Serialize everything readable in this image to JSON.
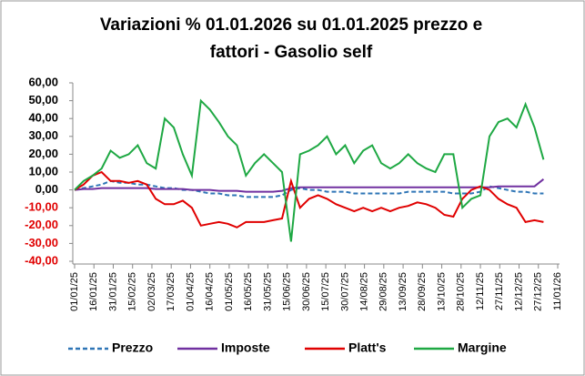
{
  "chart_data": {
    "type": "line",
    "title": [
      "Variazioni % 01.01.2026 su 01.01.2025 prezzo e",
      "fattori - Gasolio self"
    ],
    "x": [
      "2025-01-01",
      "2025-01-08",
      "2025-01-15",
      "2025-01-22",
      "2025-01-29",
      "2025-02-05",
      "2025-02-12",
      "2025-02-19",
      "2025-02-26",
      "2025-03-05",
      "2025-03-12",
      "2025-03-19",
      "2025-03-26",
      "2025-04-02",
      "2025-04-09",
      "2025-04-16",
      "2025-04-23",
      "2025-04-30",
      "2025-05-07",
      "2025-05-14",
      "2025-05-21",
      "2025-05-28",
      "2025-06-04",
      "2025-06-11",
      "2025-06-18",
      "2025-06-25",
      "2025-07-02",
      "2025-07-09",
      "2025-07-16",
      "2025-07-23",
      "2025-07-30",
      "2025-08-06",
      "2025-08-13",
      "2025-08-20",
      "2025-08-27",
      "2025-09-03",
      "2025-09-10",
      "2025-09-17",
      "2025-09-24",
      "2025-10-01",
      "2025-10-08",
      "2025-10-15",
      "2025-10-22",
      "2025-10-29",
      "2025-11-05",
      "2025-11-12",
      "2025-11-19",
      "2025-11-26",
      "2025-12-03",
      "2025-12-10",
      "2025-12-17",
      "2025-12-24",
      "2025-12-31"
    ],
    "series": [
      {
        "name": "Prezzo",
        "color": "#2e75b6",
        "dash": true,
        "values": [
          0,
          1,
          2,
          3,
          5,
          4,
          4,
          3,
          3,
          2,
          1,
          1,
          0,
          0,
          -1,
          -2,
          -2,
          -3,
          -3,
          -4,
          -4,
          -4,
          -4,
          -3,
          0,
          1,
          0,
          0,
          -1,
          -1,
          -1,
          -2,
          -2,
          -2,
          -2,
          -2,
          -2,
          -1,
          -1,
          -1,
          -1,
          -1,
          -2,
          -2,
          -2,
          -1,
          2,
          1,
          0,
          -1,
          -1,
          -2,
          -2
        ]
      },
      {
        "name": "Imposte",
        "color": "#7030a0",
        "values": [
          0,
          0.5,
          0.5,
          1,
          1,
          1,
          1,
          1,
          1,
          0.5,
          0.5,
          0.5,
          0.5,
          0,
          0,
          0,
          -0.5,
          -0.5,
          -0.5,
          -1,
          -1,
          -1,
          -1,
          -0.5,
          1,
          1.5,
          1.5,
          1.5,
          1.5,
          1.5,
          1.5,
          1.5,
          1.5,
          1.5,
          1.5,
          1.5,
          1.5,
          1.5,
          1.5,
          1.5,
          1.5,
          1.5,
          1.5,
          1.5,
          1.5,
          1.5,
          1.5,
          2,
          2,
          2,
          2,
          2,
          6
        ]
      },
      {
        "name": "Platt's",
        "color": "#e00000",
        "values": [
          0,
          3,
          8,
          10,
          5,
          5,
          4,
          5,
          3,
          -5,
          -8,
          -8,
          -6,
          -10,
          -20,
          -19,
          -18,
          -19,
          -21,
          -18,
          -18,
          -18,
          -17,
          -16,
          5,
          -10,
          -5,
          -3,
          -5,
          -8,
          -10,
          -12,
          -10,
          -12,
          -10,
          -12,
          -10,
          -9,
          -7,
          -8,
          -10,
          -14,
          -15,
          -5,
          0,
          2,
          0,
          -5,
          -8,
          -10,
          -18,
          -17,
          -18
        ]
      },
      {
        "name": "Margine",
        "color": "#1ea843",
        "values": [
          0,
          5,
          8,
          12,
          22,
          18,
          20,
          25,
          15,
          12,
          40,
          35,
          20,
          8,
          50,
          45,
          38,
          30,
          25,
          8,
          15,
          20,
          15,
          10,
          -29,
          20,
          22,
          25,
          30,
          20,
          25,
          15,
          22,
          25,
          15,
          12,
          15,
          20,
          15,
          12,
          10,
          20,
          20,
          -10,
          -5,
          -3,
          30,
          38,
          40,
          35,
          48,
          35,
          17
        ]
      }
    ],
    "xlim": [
      "2025-01-01",
      "2026-01-11"
    ],
    "xticks": [
      {
        "value": "2025-01-01",
        "label": "01/01/25"
      },
      {
        "value": "2025-01-16",
        "label": "16/01/25"
      },
      {
        "value": "2025-01-31",
        "label": "31/01/25"
      },
      {
        "value": "2025-02-15",
        "label": "15/02/25"
      },
      {
        "value": "2025-03-02",
        "label": "02/03/25"
      },
      {
        "value": "2025-03-17",
        "label": "17/03/25"
      },
      {
        "value": "2025-04-01",
        "label": "01/04/25"
      },
      {
        "value": "2025-04-16",
        "label": "16/04/25"
      },
      {
        "value": "2025-05-01",
        "label": "01/05/25"
      },
      {
        "value": "2025-05-16",
        "label": "16/05/25"
      },
      {
        "value": "2025-05-31",
        "label": "31/05/25"
      },
      {
        "value": "2025-06-15",
        "label": "15/06/25"
      },
      {
        "value": "2025-06-30",
        "label": "30/06/25"
      },
      {
        "value": "2025-07-15",
        "label": "15/07/25"
      },
      {
        "value": "2025-07-30",
        "label": "30/07/25"
      },
      {
        "value": "2025-08-14",
        "label": "14/08/25"
      },
      {
        "value": "2025-08-29",
        "label": "29/08/25"
      },
      {
        "value": "2025-09-13",
        "label": "13/09/25"
      },
      {
        "value": "2025-09-28",
        "label": "28/09/25"
      },
      {
        "value": "2025-10-13",
        "label": "13/10/25"
      },
      {
        "value": "2025-10-28",
        "label": "28/10/25"
      },
      {
        "value": "2025-11-12",
        "label": "12/11/25"
      },
      {
        "value": "2025-11-27",
        "label": "27/11/25"
      },
      {
        "value": "2025-12-12",
        "label": "12/12/25"
      },
      {
        "value": "2025-12-27",
        "label": "27/12/25"
      },
      {
        "value": "2026-01-11",
        "label": "11/01/26"
      }
    ],
    "ylim": [
      -40,
      60
    ],
    "yticks": [
      {
        "value": 60,
        "label": "60,00"
      },
      {
        "value": 50,
        "label": "50,00"
      },
      {
        "value": 40,
        "label": "40,00"
      },
      {
        "value": 30,
        "label": "30,00"
      },
      {
        "value": 20,
        "label": "20,00"
      },
      {
        "value": 10,
        "label": "10,00"
      },
      {
        "value": 0,
        "label": "0,00"
      },
      {
        "value": -10,
        "label": "-10,00"
      },
      {
        "value": -20,
        "label": "-20,00"
      },
      {
        "value": -30,
        "label": "-30,00"
      },
      {
        "value": -40,
        "label": "-40,00"
      }
    ],
    "negative_color": "#e00000",
    "grid": false,
    "legend": "bottom"
  }
}
